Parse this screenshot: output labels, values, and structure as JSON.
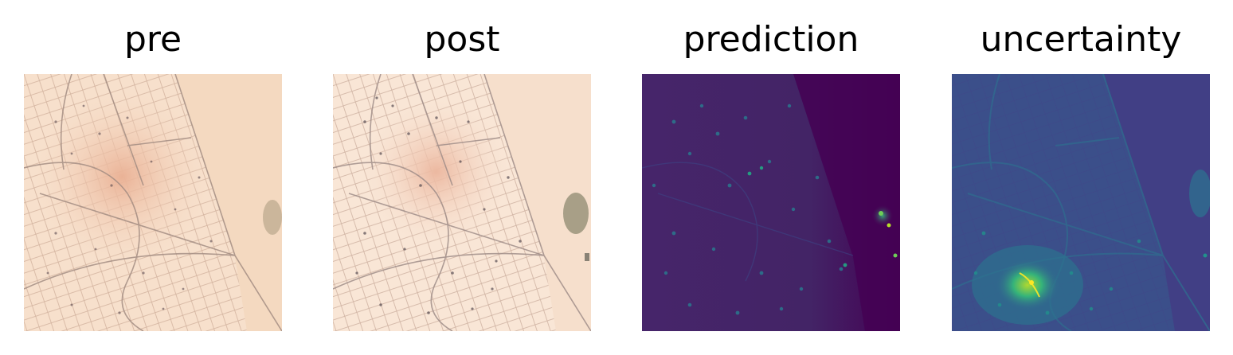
{
  "figure": {
    "panels": [
      {
        "title": "pre",
        "image": "satellite-image-pre-event",
        "colormap": "natural-color"
      },
      {
        "title": "post",
        "image": "satellite-image-post-event",
        "colormap": "natural-color"
      },
      {
        "title": "prediction",
        "image": "prediction-heatmap",
        "colormap": "viridis"
      },
      {
        "title": "uncertainty",
        "image": "uncertainty-heatmap",
        "colormap": "viridis"
      }
    ],
    "colors": {
      "sand": "#f6dcc6",
      "viridis_low": "#440154",
      "viridis_mid": "#31688e",
      "viridis_high": "#fde725"
    }
  }
}
